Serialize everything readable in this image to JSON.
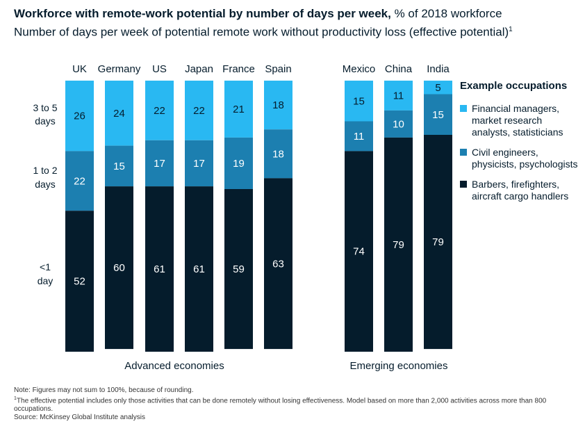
{
  "header": {
    "title_bold": "Workforce with remote-work potential by number of days per week,",
    "title_rest": " % of 2018 workforce",
    "subtitle": "Number of days per week of potential remote work without productivity loss (effective potential)",
    "subtitle_sup": "1"
  },
  "chart_data": {
    "type": "bar",
    "stacked": true,
    "orientation": "vertical",
    "categories": [
      "UK",
      "Germany",
      "US",
      "Japan",
      "France",
      "Spain",
      "Mexico",
      "China",
      "India"
    ],
    "series": [
      {
        "name": "3 to 5 days",
        "color": "#29b8f2",
        "values": [
          26,
          24,
          22,
          22,
          21,
          18,
          15,
          11,
          5
        ]
      },
      {
        "name": "1 to 2 days",
        "color": "#1c7fb0",
        "values": [
          22,
          15,
          17,
          17,
          19,
          18,
          11,
          10,
          15
        ]
      },
      {
        "name": "<1 day",
        "color": "#051c2c",
        "values": [
          52,
          60,
          61,
          61,
          59,
          63,
          74,
          79,
          79
        ]
      }
    ],
    "row_labels": [
      [
        "3 to 5",
        "days"
      ],
      [
        "1 to 2",
        "days"
      ],
      [
        "<1",
        "day"
      ]
    ],
    "groups": [
      {
        "label": "Advanced economies",
        "categories": [
          "UK",
          "Germany",
          "US",
          "Japan",
          "France",
          "Spain"
        ]
      },
      {
        "label": "Emerging economies",
        "categories": [
          "Mexico",
          "China",
          "India"
        ]
      }
    ],
    "ylim": [
      0,
      100
    ],
    "grid": false,
    "legend_position": "right"
  },
  "legend": {
    "title": "Example occupations",
    "items": [
      {
        "color": "#29b8f2",
        "label": "Financial managers, market research analysts, statisticians"
      },
      {
        "color": "#1c7fb0",
        "label": "Civil engineers, physicists, psychologists"
      },
      {
        "color": "#051c2c",
        "label": "Barbers, firefighters, aircraft cargo handlers"
      }
    ]
  },
  "notes": {
    "note": "Note: Figures may not sum to 100%, because of rounding.",
    "footnote_sup": "1",
    "footnote": "The effective potential includes only those activities that can be done remotely without losing effectiveness. Model based on more than 2,000 activities across more than 800 occupations.",
    "source": "Source: McKinsey Global Institute analysis"
  }
}
